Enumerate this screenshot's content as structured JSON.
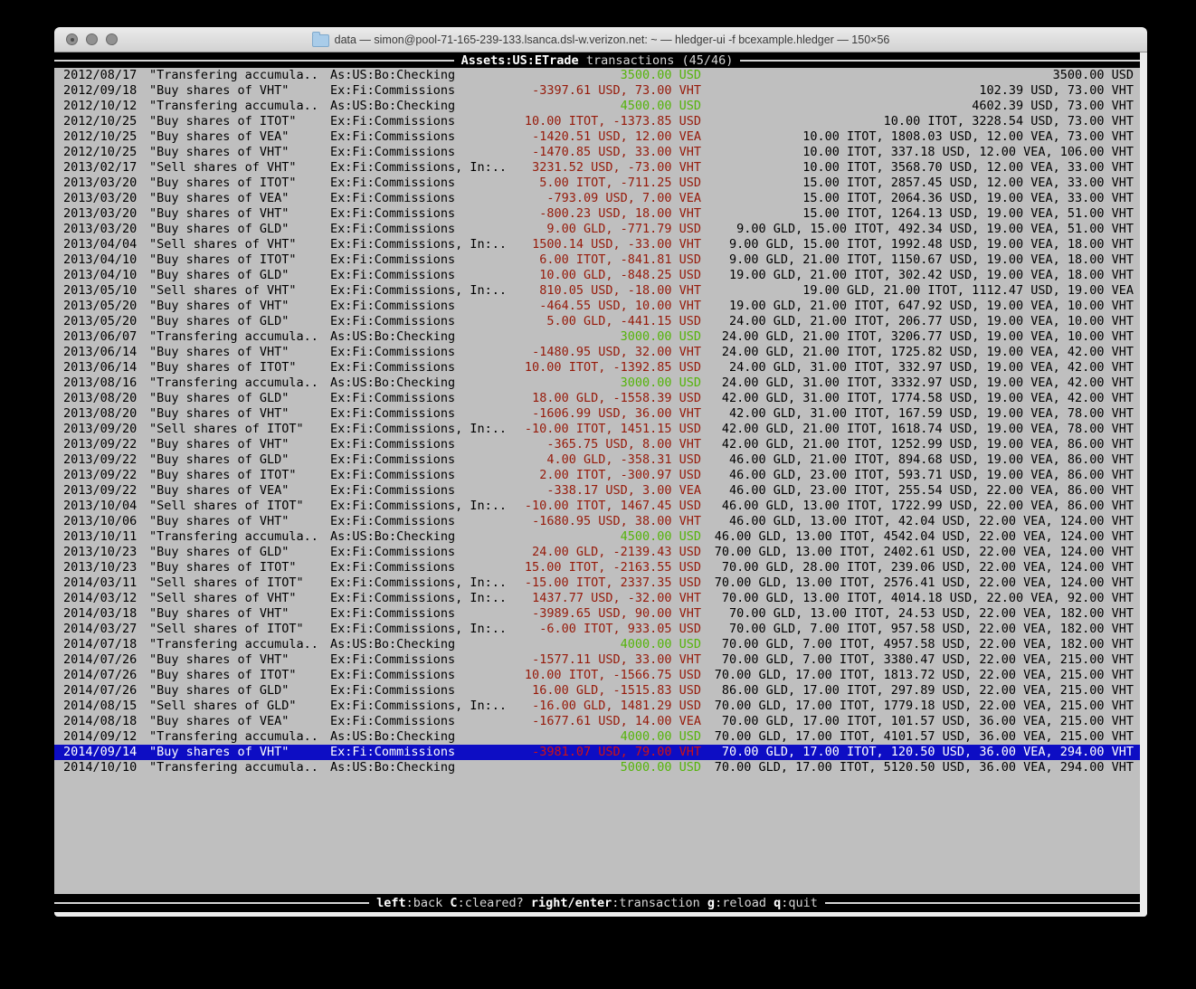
{
  "window": {
    "title": "data — simon@pool-71-165-239-133.lsanca.dsl-w.verizon.net: ~ — hledger-ui -f bcexample.hledger — 150×56",
    "traffic_lights": [
      "close",
      "minimize",
      "zoom"
    ]
  },
  "colors": {
    "terminal-bg": "#bfbfbf",
    "bar-bg": "#000000",
    "green": "#55b40a",
    "red": "#961a0a",
    "selected-bg": "#0d0dc4",
    "selected-red": "#d01212"
  },
  "top_bar": {
    "account": "Assets:US:ETrade",
    "mode": " transactions (45/46)"
  },
  "bottom_bar": {
    "items": [
      {
        "key": "left",
        "desc": ":back "
      },
      {
        "key": "C",
        "desc": ":cleared? "
      },
      {
        "key": "right/enter",
        "desc": ":transaction "
      },
      {
        "key": "g",
        "desc": ":reload "
      },
      {
        "key": "q",
        "desc": ":quit"
      }
    ]
  },
  "transactions": {
    "rows": [
      {
        "date": "2012/08/17",
        "description": "\"Transfering accumula..",
        "accounts": "As:US:Bo:Checking",
        "change": "3500.00 USD",
        "change_color": "green",
        "balance": "3500.00 USD",
        "selected": false
      },
      {
        "date": "2012/09/18",
        "description": "\"Buy shares of VHT\"",
        "accounts": "Ex:Fi:Commissions",
        "change": "-3397.61 USD, 73.00 VHT",
        "change_color": "red",
        "balance": "102.39 USD, 73.00 VHT",
        "selected": false
      },
      {
        "date": "2012/10/12",
        "description": "\"Transfering accumula..",
        "accounts": "As:US:Bo:Checking",
        "change": "4500.00 USD",
        "change_color": "green",
        "balance": "4602.39 USD, 73.00 VHT",
        "selected": false
      },
      {
        "date": "2012/10/25",
        "description": "\"Buy shares of ITOT\"",
        "accounts": "Ex:Fi:Commissions",
        "change": "10.00 ITOT, -1373.85 USD",
        "change_color": "red",
        "balance": "10.00 ITOT, 3228.54 USD, 73.00 VHT",
        "selected": false
      },
      {
        "date": "2012/10/25",
        "description": "\"Buy shares of VEA\"",
        "accounts": "Ex:Fi:Commissions",
        "change": "-1420.51 USD, 12.00 VEA",
        "change_color": "red",
        "balance": "10.00 ITOT, 1808.03 USD, 12.00 VEA, 73.00 VHT",
        "selected": false
      },
      {
        "date": "2012/10/25",
        "description": "\"Buy shares of VHT\"",
        "accounts": "Ex:Fi:Commissions",
        "change": "-1470.85 USD, 33.00 VHT",
        "change_color": "red",
        "balance": "10.00 ITOT, 337.18 USD, 12.00 VEA, 106.00 VHT",
        "selected": false
      },
      {
        "date": "2013/02/17",
        "description": "\"Sell shares of VHT\"",
        "accounts": "Ex:Fi:Commissions, In:..",
        "change": "3231.52 USD, -73.00 VHT",
        "change_color": "red",
        "balance": "10.00 ITOT, 3568.70 USD, 12.00 VEA, 33.00 VHT",
        "selected": false
      },
      {
        "date": "2013/03/20",
        "description": "\"Buy shares of ITOT\"",
        "accounts": "Ex:Fi:Commissions",
        "change": "5.00 ITOT, -711.25 USD",
        "change_color": "red",
        "balance": "15.00 ITOT, 2857.45 USD, 12.00 VEA, 33.00 VHT",
        "selected": false
      },
      {
        "date": "2013/03/20",
        "description": "\"Buy shares of VEA\"",
        "accounts": "Ex:Fi:Commissions",
        "change": "-793.09 USD, 7.00 VEA",
        "change_color": "red",
        "balance": "15.00 ITOT, 2064.36 USD, 19.00 VEA, 33.00 VHT",
        "selected": false
      },
      {
        "date": "2013/03/20",
        "description": "\"Buy shares of VHT\"",
        "accounts": "Ex:Fi:Commissions",
        "change": "-800.23 USD, 18.00 VHT",
        "change_color": "red",
        "balance": "15.00 ITOT, 1264.13 USD, 19.00 VEA, 51.00 VHT",
        "selected": false
      },
      {
        "date": "2013/03/20",
        "description": "\"Buy shares of GLD\"",
        "accounts": "Ex:Fi:Commissions",
        "change": "9.00 GLD, -771.79 USD",
        "change_color": "red",
        "balance": "9.00 GLD, 15.00 ITOT, 492.34 USD, 19.00 VEA, 51.00 VHT",
        "selected": false
      },
      {
        "date": "2013/04/04",
        "description": "\"Sell shares of VHT\"",
        "accounts": "Ex:Fi:Commissions, In:..",
        "change": "1500.14 USD, -33.00 VHT",
        "change_color": "red",
        "balance": "9.00 GLD, 15.00 ITOT, 1992.48 USD, 19.00 VEA, 18.00 VHT",
        "selected": false
      },
      {
        "date": "2013/04/10",
        "description": "\"Buy shares of ITOT\"",
        "accounts": "Ex:Fi:Commissions",
        "change": "6.00 ITOT, -841.81 USD",
        "change_color": "red",
        "balance": "9.00 GLD, 21.00 ITOT, 1150.67 USD, 19.00 VEA, 18.00 VHT",
        "selected": false
      },
      {
        "date": "2013/04/10",
        "description": "\"Buy shares of GLD\"",
        "accounts": "Ex:Fi:Commissions",
        "change": "10.00 GLD, -848.25 USD",
        "change_color": "red",
        "balance": "19.00 GLD, 21.00 ITOT, 302.42 USD, 19.00 VEA, 18.00 VHT",
        "selected": false
      },
      {
        "date": "2013/05/10",
        "description": "\"Sell shares of VHT\"",
        "accounts": "Ex:Fi:Commissions, In:..",
        "change": "810.05 USD, -18.00 VHT",
        "change_color": "red",
        "balance": "19.00 GLD, 21.00 ITOT, 1112.47 USD, 19.00 VEA",
        "selected": false
      },
      {
        "date": "2013/05/20",
        "description": "\"Buy shares of VHT\"",
        "accounts": "Ex:Fi:Commissions",
        "change": "-464.55 USD, 10.00 VHT",
        "change_color": "red",
        "balance": "19.00 GLD, 21.00 ITOT, 647.92 USD, 19.00 VEA, 10.00 VHT",
        "selected": false
      },
      {
        "date": "2013/05/20",
        "description": "\"Buy shares of GLD\"",
        "accounts": "Ex:Fi:Commissions",
        "change": "5.00 GLD, -441.15 USD",
        "change_color": "red",
        "balance": "24.00 GLD, 21.00 ITOT, 206.77 USD, 19.00 VEA, 10.00 VHT",
        "selected": false
      },
      {
        "date": "2013/06/07",
        "description": "\"Transfering accumula..",
        "accounts": "As:US:Bo:Checking",
        "change": "3000.00 USD",
        "change_color": "green",
        "balance": "24.00 GLD, 21.00 ITOT, 3206.77 USD, 19.00 VEA, 10.00 VHT",
        "selected": false
      },
      {
        "date": "2013/06/14",
        "description": "\"Buy shares of VHT\"",
        "accounts": "Ex:Fi:Commissions",
        "change": "-1480.95 USD, 32.00 VHT",
        "change_color": "red",
        "balance": "24.00 GLD, 21.00 ITOT, 1725.82 USD, 19.00 VEA, 42.00 VHT",
        "selected": false
      },
      {
        "date": "2013/06/14",
        "description": "\"Buy shares of ITOT\"",
        "accounts": "Ex:Fi:Commissions",
        "change": "10.00 ITOT, -1392.85 USD",
        "change_color": "red",
        "balance": "24.00 GLD, 31.00 ITOT, 332.97 USD, 19.00 VEA, 42.00 VHT",
        "selected": false
      },
      {
        "date": "2013/08/16",
        "description": "\"Transfering accumula..",
        "accounts": "As:US:Bo:Checking",
        "change": "3000.00 USD",
        "change_color": "green",
        "balance": "24.00 GLD, 31.00 ITOT, 3332.97 USD, 19.00 VEA, 42.00 VHT",
        "selected": false
      },
      {
        "date": "2013/08/20",
        "description": "\"Buy shares of GLD\"",
        "accounts": "Ex:Fi:Commissions",
        "change": "18.00 GLD, -1558.39 USD",
        "change_color": "red",
        "balance": "42.00 GLD, 31.00 ITOT, 1774.58 USD, 19.00 VEA, 42.00 VHT",
        "selected": false
      },
      {
        "date": "2013/08/20",
        "description": "\"Buy shares of VHT\"",
        "accounts": "Ex:Fi:Commissions",
        "change": "-1606.99 USD, 36.00 VHT",
        "change_color": "red",
        "balance": "42.00 GLD, 31.00 ITOT, 167.59 USD, 19.00 VEA, 78.00 VHT",
        "selected": false
      },
      {
        "date": "2013/09/20",
        "description": "\"Sell shares of ITOT\"",
        "accounts": "Ex:Fi:Commissions, In:..",
        "change": "-10.00 ITOT, 1451.15 USD",
        "change_color": "red",
        "balance": "42.00 GLD, 21.00 ITOT, 1618.74 USD, 19.00 VEA, 78.00 VHT",
        "selected": false
      },
      {
        "date": "2013/09/22",
        "description": "\"Buy shares of VHT\"",
        "accounts": "Ex:Fi:Commissions",
        "change": "-365.75 USD, 8.00 VHT",
        "change_color": "red",
        "balance": "42.00 GLD, 21.00 ITOT, 1252.99 USD, 19.00 VEA, 86.00 VHT",
        "selected": false
      },
      {
        "date": "2013/09/22",
        "description": "\"Buy shares of GLD\"",
        "accounts": "Ex:Fi:Commissions",
        "change": "4.00 GLD, -358.31 USD",
        "change_color": "red",
        "balance": "46.00 GLD, 21.00 ITOT, 894.68 USD, 19.00 VEA, 86.00 VHT",
        "selected": false
      },
      {
        "date": "2013/09/22",
        "description": "\"Buy shares of ITOT\"",
        "accounts": "Ex:Fi:Commissions",
        "change": "2.00 ITOT, -300.97 USD",
        "change_color": "red",
        "balance": "46.00 GLD, 23.00 ITOT, 593.71 USD, 19.00 VEA, 86.00 VHT",
        "selected": false
      },
      {
        "date": "2013/09/22",
        "description": "\"Buy shares of VEA\"",
        "accounts": "Ex:Fi:Commissions",
        "change": "-338.17 USD, 3.00 VEA",
        "change_color": "red",
        "balance": "46.00 GLD, 23.00 ITOT, 255.54 USD, 22.00 VEA, 86.00 VHT",
        "selected": false
      },
      {
        "date": "2013/10/04",
        "description": "\"Sell shares of ITOT\"",
        "accounts": "Ex:Fi:Commissions, In:..",
        "change": "-10.00 ITOT, 1467.45 USD",
        "change_color": "red",
        "balance": "46.00 GLD, 13.00 ITOT, 1722.99 USD, 22.00 VEA, 86.00 VHT",
        "selected": false
      },
      {
        "date": "2013/10/06",
        "description": "\"Buy shares of VHT\"",
        "accounts": "Ex:Fi:Commissions",
        "change": "-1680.95 USD, 38.00 VHT",
        "change_color": "red",
        "balance": "46.00 GLD, 13.00 ITOT, 42.04 USD, 22.00 VEA, 124.00 VHT",
        "selected": false
      },
      {
        "date": "2013/10/11",
        "description": "\"Transfering accumula..",
        "accounts": "As:US:Bo:Checking",
        "change": "4500.00 USD",
        "change_color": "green",
        "balance": "46.00 GLD, 13.00 ITOT, 4542.04 USD, 22.00 VEA, 124.00 VHT",
        "selected": false
      },
      {
        "date": "2013/10/23",
        "description": "\"Buy shares of GLD\"",
        "accounts": "Ex:Fi:Commissions",
        "change": "24.00 GLD, -2139.43 USD",
        "change_color": "red",
        "balance": "70.00 GLD, 13.00 ITOT, 2402.61 USD, 22.00 VEA, 124.00 VHT",
        "selected": false
      },
      {
        "date": "2013/10/23",
        "description": "\"Buy shares of ITOT\"",
        "accounts": "Ex:Fi:Commissions",
        "change": "15.00 ITOT, -2163.55 USD",
        "change_color": "red",
        "balance": "70.00 GLD, 28.00 ITOT, 239.06 USD, 22.00 VEA, 124.00 VHT",
        "selected": false
      },
      {
        "date": "2014/03/11",
        "description": "\"Sell shares of ITOT\"",
        "accounts": "Ex:Fi:Commissions, In:..",
        "change": "-15.00 ITOT, 2337.35 USD",
        "change_color": "red",
        "balance": "70.00 GLD, 13.00 ITOT, 2576.41 USD, 22.00 VEA, 124.00 VHT",
        "selected": false
      },
      {
        "date": "2014/03/12",
        "description": "\"Sell shares of VHT\"",
        "accounts": "Ex:Fi:Commissions, In:..",
        "change": "1437.77 USD, -32.00 VHT",
        "change_color": "red",
        "balance": "70.00 GLD, 13.00 ITOT, 4014.18 USD, 22.00 VEA, 92.00 VHT",
        "selected": false
      },
      {
        "date": "2014/03/18",
        "description": "\"Buy shares of VHT\"",
        "accounts": "Ex:Fi:Commissions",
        "change": "-3989.65 USD, 90.00 VHT",
        "change_color": "red",
        "balance": "70.00 GLD, 13.00 ITOT, 24.53 USD, 22.00 VEA, 182.00 VHT",
        "selected": false
      },
      {
        "date": "2014/03/27",
        "description": "\"Sell shares of ITOT\"",
        "accounts": "Ex:Fi:Commissions, In:..",
        "change": "-6.00 ITOT, 933.05 USD",
        "change_color": "red",
        "balance": "70.00 GLD, 7.00 ITOT, 957.58 USD, 22.00 VEA, 182.00 VHT",
        "selected": false
      },
      {
        "date": "2014/07/18",
        "description": "\"Transfering accumula..",
        "accounts": "As:US:Bo:Checking",
        "change": "4000.00 USD",
        "change_color": "green",
        "balance": "70.00 GLD, 7.00 ITOT, 4957.58 USD, 22.00 VEA, 182.00 VHT",
        "selected": false
      },
      {
        "date": "2014/07/26",
        "description": "\"Buy shares of VHT\"",
        "accounts": "Ex:Fi:Commissions",
        "change": "-1577.11 USD, 33.00 VHT",
        "change_color": "red",
        "balance": "70.00 GLD, 7.00 ITOT, 3380.47 USD, 22.00 VEA, 215.00 VHT",
        "selected": false
      },
      {
        "date": "2014/07/26",
        "description": "\"Buy shares of ITOT\"",
        "accounts": "Ex:Fi:Commissions",
        "change": "10.00 ITOT, -1566.75 USD",
        "change_color": "red",
        "balance": "70.00 GLD, 17.00 ITOT, 1813.72 USD, 22.00 VEA, 215.00 VHT",
        "selected": false
      },
      {
        "date": "2014/07/26",
        "description": "\"Buy shares of GLD\"",
        "accounts": "Ex:Fi:Commissions",
        "change": "16.00 GLD, -1515.83 USD",
        "change_color": "red",
        "balance": "86.00 GLD, 17.00 ITOT, 297.89 USD, 22.00 VEA, 215.00 VHT",
        "selected": false
      },
      {
        "date": "2014/08/15",
        "description": "\"Sell shares of GLD\"",
        "accounts": "Ex:Fi:Commissions, In:..",
        "change": "-16.00 GLD, 1481.29 USD",
        "change_color": "red",
        "balance": "70.00 GLD, 17.00 ITOT, 1779.18 USD, 22.00 VEA, 215.00 VHT",
        "selected": false
      },
      {
        "date": "2014/08/18",
        "description": "\"Buy shares of VEA\"",
        "accounts": "Ex:Fi:Commissions",
        "change": "-1677.61 USD, 14.00 VEA",
        "change_color": "red",
        "balance": "70.00 GLD, 17.00 ITOT, 101.57 USD, 36.00 VEA, 215.00 VHT",
        "selected": false
      },
      {
        "date": "2014/09/12",
        "description": "\"Transfering accumula..",
        "accounts": "As:US:Bo:Checking",
        "change": "4000.00 USD",
        "change_color": "green",
        "balance": "70.00 GLD, 17.00 ITOT, 4101.57 USD, 36.00 VEA, 215.00 VHT",
        "selected": false
      },
      {
        "date": "2014/09/14",
        "description": "\"Buy shares of VHT\"",
        "accounts": "Ex:Fi:Commissions",
        "change": "-3981.07 USD, 79.00 VHT",
        "change_color": "red",
        "balance": "70.00 GLD, 17.00 ITOT, 120.50 USD, 36.00 VEA, 294.00 VHT",
        "selected": true
      },
      {
        "date": "2014/10/10",
        "description": "\"Transfering accumula..",
        "accounts": "As:US:Bo:Checking",
        "change": "5000.00 USD",
        "change_color": "green",
        "balance": "70.00 GLD, 17.00 ITOT, 5120.50 USD, 36.00 VEA, 294.00 VHT",
        "selected": false
      }
    ]
  }
}
